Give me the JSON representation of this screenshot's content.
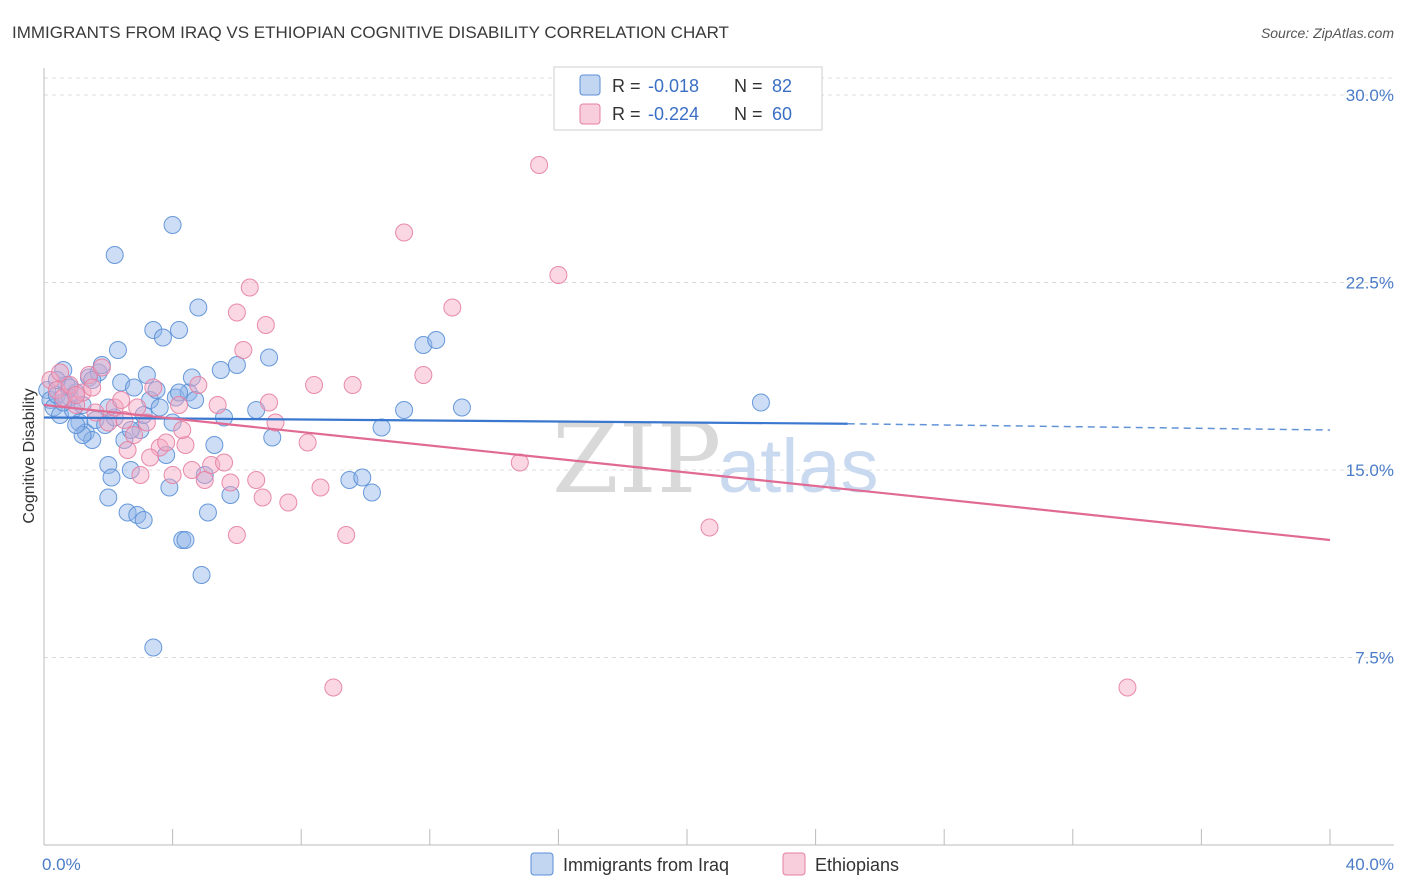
{
  "chart_data": {
    "type": "scatter",
    "title": "IMMIGRANTS FROM IRAQ VS ETHIOPIAN COGNITIVE DISABILITY CORRELATION CHART",
    "source": "Source: ZipAtlas.com",
    "ylabel": "Cognitive Disability",
    "xlim": [
      0,
      40
    ],
    "ylim": [
      0,
      31
    ],
    "x_tick_labels": [
      "0.0%",
      "40.0%"
    ],
    "y_ticks": [
      {
        "value": 7.5,
        "label": "7.5%"
      },
      {
        "value": 15.0,
        "label": "15.0%"
      },
      {
        "value": 22.5,
        "label": "22.5%"
      },
      {
        "value": 30.0,
        "label": "30.0%"
      }
    ],
    "watermark": {
      "zip": "ZIP",
      "atlas": "atlas"
    },
    "legend": {
      "r_label": "R =",
      "n_label": "N =",
      "items": [
        {
          "r": "-0.018",
          "n": "82",
          "color": "#8fb4e8"
        },
        {
          "r": "-0.224",
          "n": "60",
          "color": "#f4a6c0"
        }
      ]
    },
    "series": [
      {
        "name": "Immigrants from Iraq",
        "color": "#8fb4e8",
        "stroke": "#5a8fd6",
        "line_color": "#3a78d0",
        "trend": {
          "x0": 0,
          "y0": 17.1,
          "x1": 25,
          "y1": 16.85,
          "dash_x1": 40,
          "dash_y1": 16.6
        },
        "points": [
          [
            0.1,
            18.2
          ],
          [
            0.2,
            17.8
          ],
          [
            0.3,
            17.5
          ],
          [
            0.4,
            18.0
          ],
          [
            0.5,
            17.2
          ],
          [
            0.6,
            19.0
          ],
          [
            0.7,
            18.4
          ],
          [
            0.8,
            17.9
          ],
          [
            0.9,
            17.4
          ],
          [
            1.0,
            18.1
          ],
          [
            1.1,
            16.9
          ],
          [
            1.2,
            17.6
          ],
          [
            1.3,
            16.5
          ],
          [
            1.4,
            18.7
          ],
          [
            1.5,
            16.2
          ],
          [
            1.6,
            17.0
          ],
          [
            1.7,
            18.9
          ],
          [
            1.8,
            19.2
          ],
          [
            1.9,
            16.8
          ],
          [
            2.0,
            15.2
          ],
          [
            2.0,
            13.9
          ],
          [
            2.1,
            14.7
          ],
          [
            2.2,
            17.1
          ],
          [
            2.3,
            19.8
          ],
          [
            2.4,
            18.5
          ],
          [
            2.5,
            16.2
          ],
          [
            2.6,
            13.3
          ],
          [
            2.7,
            15.0
          ],
          [
            2.8,
            18.3
          ],
          [
            2.9,
            13.2
          ],
          [
            3.0,
            16.6
          ],
          [
            3.1,
            17.2
          ],
          [
            3.2,
            18.8
          ],
          [
            3.3,
            17.8
          ],
          [
            3.4,
            20.6
          ],
          [
            3.5,
            18.2
          ],
          [
            3.6,
            17.5
          ],
          [
            3.7,
            20.3
          ],
          [
            3.8,
            15.6
          ],
          [
            3.9,
            14.3
          ],
          [
            4.0,
            16.9
          ],
          [
            4.1,
            17.9
          ],
          [
            4.2,
            20.6
          ],
          [
            4.3,
            12.2
          ],
          [
            4.4,
            12.2
          ],
          [
            4.5,
            18.1
          ],
          [
            4.6,
            18.7
          ],
          [
            4.7,
            17.8
          ],
          [
            4.8,
            21.5
          ],
          [
            4.9,
            10.8
          ],
          [
            5.0,
            14.8
          ],
          [
            5.1,
            13.3
          ],
          [
            5.3,
            16.0
          ],
          [
            5.5,
            19.0
          ],
          [
            5.6,
            17.1
          ],
          [
            5.8,
            14.0
          ],
          [
            6.0,
            19.2
          ],
          [
            2.2,
            23.6
          ],
          [
            4.0,
            24.8
          ],
          [
            3.4,
            7.9
          ],
          [
            6.6,
            17.4
          ],
          [
            7.0,
            19.5
          ],
          [
            7.1,
            16.3
          ],
          [
            9.5,
            14.6
          ],
          [
            9.9,
            14.7
          ],
          [
            10.2,
            14.1
          ],
          [
            10.5,
            16.7
          ],
          [
            11.2,
            17.4
          ],
          [
            11.8,
            20.0
          ],
          [
            12.2,
            20.2
          ],
          [
            13.0,
            17.5
          ],
          [
            22.3,
            17.7
          ],
          [
            1.5,
            18.6
          ],
          [
            0.8,
            18.3
          ],
          [
            1.2,
            16.4
          ],
          [
            2.7,
            16.6
          ],
          [
            3.1,
            13.0
          ],
          [
            0.4,
            18.6
          ],
          [
            0.6,
            17.7
          ],
          [
            1.0,
            16.8
          ],
          [
            2.0,
            17.5
          ],
          [
            4.2,
            18.1
          ]
        ]
      },
      {
        "name": "Ethiopians",
        "color": "#f4a6c0",
        "stroke": "#e57fa2",
        "line_color": "#e06a93",
        "trend": {
          "x0": 0,
          "y0": 17.6,
          "x1": 40,
          "y1": 12.2
        },
        "points": [
          [
            0.2,
            18.6
          ],
          [
            0.4,
            18.2
          ],
          [
            0.6,
            17.9
          ],
          [
            0.8,
            18.4
          ],
          [
            1.0,
            17.6
          ],
          [
            1.2,
            18.1
          ],
          [
            1.4,
            18.8
          ],
          [
            1.6,
            17.3
          ],
          [
            1.8,
            19.1
          ],
          [
            2.0,
            16.9
          ],
          [
            2.2,
            17.5
          ],
          [
            2.4,
            17.8
          ],
          [
            2.6,
            15.8
          ],
          [
            2.8,
            16.4
          ],
          [
            3.0,
            14.8
          ],
          [
            3.2,
            16.9
          ],
          [
            3.4,
            18.3
          ],
          [
            3.6,
            15.9
          ],
          [
            3.8,
            16.1
          ],
          [
            4.0,
            14.8
          ],
          [
            4.2,
            17.6
          ],
          [
            4.4,
            16.0
          ],
          [
            4.6,
            15.0
          ],
          [
            4.8,
            18.4
          ],
          [
            5.0,
            14.6
          ],
          [
            5.2,
            15.2
          ],
          [
            5.4,
            17.6
          ],
          [
            5.6,
            15.3
          ],
          [
            5.8,
            14.5
          ],
          [
            6.0,
            12.4
          ],
          [
            6.2,
            19.8
          ],
          [
            6.4,
            22.3
          ],
          [
            6.6,
            14.6
          ],
          [
            6.8,
            13.9
          ],
          [
            7.0,
            17.7
          ],
          [
            7.2,
            16.9
          ],
          [
            7.6,
            13.7
          ],
          [
            8.2,
            16.1
          ],
          [
            8.4,
            18.4
          ],
          [
            8.6,
            14.3
          ],
          [
            9.0,
            6.3
          ],
          [
            9.4,
            12.4
          ],
          [
            9.6,
            18.4
          ],
          [
            11.2,
            24.5
          ],
          [
            11.8,
            18.8
          ],
          [
            12.7,
            21.5
          ],
          [
            14.8,
            15.3
          ],
          [
            15.4,
            27.2
          ],
          [
            16.0,
            22.8
          ],
          [
            20.7,
            12.7
          ],
          [
            33.7,
            6.3
          ],
          [
            6.0,
            21.3
          ],
          [
            6.9,
            20.8
          ],
          [
            1.0,
            18.0
          ],
          [
            2.9,
            17.5
          ],
          [
            3.3,
            15.5
          ],
          [
            0.5,
            18.9
          ],
          [
            1.5,
            18.3
          ],
          [
            2.5,
            17.0
          ],
          [
            4.3,
            16.6
          ]
        ]
      }
    ]
  }
}
